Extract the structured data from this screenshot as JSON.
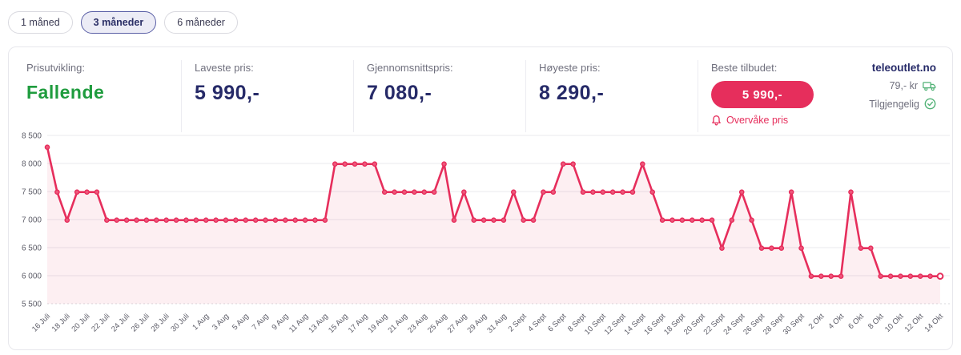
{
  "tabs": [
    {
      "label": "1 måned",
      "active": false
    },
    {
      "label": "3 måneder",
      "active": true
    },
    {
      "label": "6 måneder",
      "active": false
    }
  ],
  "stats": {
    "trend": {
      "label": "Prisutvikling:",
      "value": "Fallende"
    },
    "lowest": {
      "label": "Laveste pris:",
      "value": "5 990,-"
    },
    "average": {
      "label": "Gjennomsnittspris:",
      "value": "7 080,-"
    },
    "highest": {
      "label": "Høyeste pris:",
      "value": "8 290,-"
    }
  },
  "best_offer": {
    "label": "Beste tilbudet:",
    "price": "5 990,-",
    "monitor_label": "Overvåke pris",
    "store": "teleoutlet.no",
    "shipping": "79,- kr",
    "availability": "Tilgjengelig"
  },
  "colors": {
    "accent_red": "#e62e5c",
    "navy": "#262a68",
    "green": "#1f9c3e",
    "icon_green": "#52b277",
    "grid": "#e9e9ee",
    "grid_bottom": "#d8d8de",
    "axis_text": "#5d5d68"
  },
  "chart_data": {
    "type": "line",
    "title": "",
    "xlabel": "",
    "ylabel": "",
    "x_tick_labels": [
      "16 Juli",
      "18 Juli",
      "20 Juli",
      "22 Juli",
      "24 Juli",
      "26 Juli",
      "28 Juli",
      "30 Juli",
      "1 Aug",
      "3 Aug",
      "5 Aug",
      "7 Aug",
      "9 Aug",
      "11 Aug",
      "13 Aug",
      "15 Aug",
      "17 Aug",
      "19 Aug",
      "21 Aug",
      "23 Aug",
      "25 Aug",
      "27 Aug",
      "29 Aug",
      "31 Aug",
      "2 Sept",
      "4 Sept",
      "6 Sept",
      "8 Sept",
      "10 Sept",
      "12 Sept",
      "14 Sept",
      "16 Sept",
      "18 Sept",
      "20 Sept",
      "22 Sept",
      "24 Sept",
      "26 Sept",
      "28 Sept",
      "30 Sept",
      "2 Okt",
      "4 Okt",
      "6 Okt",
      "8 Okt",
      "10 Okt",
      "12 Okt",
      "14 Okt"
    ],
    "points_per_tick": 2,
    "values": [
      8290,
      7490,
      6990,
      7490,
      7490,
      7490,
      6990,
      6990,
      6990,
      6990,
      6990,
      6990,
      6990,
      6990,
      6990,
      6990,
      6990,
      6990,
      6990,
      6990,
      6990,
      6990,
      6990,
      6990,
      6990,
      6990,
      6990,
      6990,
      6990,
      7990,
      7990,
      7990,
      7990,
      7990,
      7490,
      7490,
      7490,
      7490,
      7490,
      7490,
      7990,
      6990,
      7490,
      6990,
      6990,
      6990,
      6990,
      7490,
      6990,
      6990,
      7490,
      7490,
      7990,
      7990,
      7490,
      7490,
      7490,
      7490,
      7490,
      7490,
      7990,
      7490,
      6990,
      6990,
      6990,
      6990,
      6990,
      6990,
      6490,
      6990,
      7490,
      6990,
      6490,
      6490,
      6490,
      7490,
      6490,
      5990,
      5990,
      5990,
      5990,
      7490,
      6490,
      6490,
      5990,
      5990,
      5990,
      5990,
      5990,
      5990,
      5990
    ],
    "y_ticks": [
      8500,
      8000,
      7500,
      7000,
      6500,
      6000,
      5500
    ],
    "y_tick_labels": [
      "8 500",
      "8 000",
      "7 500",
      "7 000",
      "6 500",
      "6 000",
      "5 500"
    ],
    "ylim": [
      5500,
      8500
    ],
    "grid": "horizontal",
    "legend": "none",
    "line_color": "#e62e5c",
    "area_opacity": 0.08,
    "last_point_open": true
  }
}
